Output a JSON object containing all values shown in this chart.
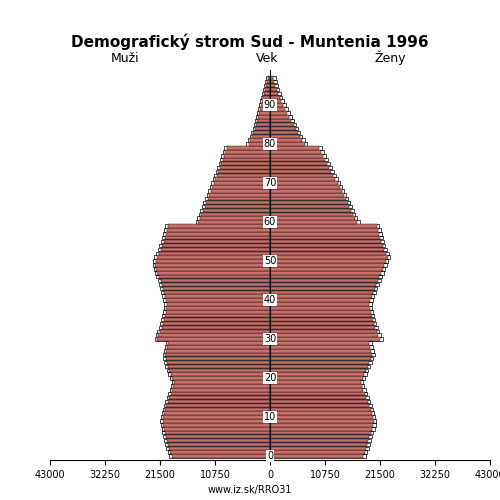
{
  "title": "Demografický strom Sud - Muntenia 1996",
  "label_males": "Muži",
  "label_females": "Ženy",
  "label_age": "Vek",
  "footer": "www.iz.sk/RRO31",
  "xlim": 43000,
  "bar_color": "#C8706A",
  "bar_edge_color": "#1a1a1a",
  "males": [
    19200,
    19500,
    19800,
    20000,
    20200,
    20400,
    20600,
    20700,
    20900,
    21000,
    20900,
    20700,
    20500,
    20300,
    20000,
    19700,
    19400,
    19100,
    18900,
    18700,
    19100,
    19400,
    19700,
    20000,
    20200,
    20400,
    20500,
    20300,
    20200,
    20000,
    22000,
    21800,
    21500,
    21200,
    21000,
    20800,
    20600,
    20400,
    20300,
    20200,
    20400,
    20600,
    20800,
    21000,
    21200,
    21400,
    21700,
    22000,
    22200,
    22400,
    22300,
    22100,
    21700,
    21400,
    21100,
    20800,
    20600,
    20400,
    20200,
    20000,
    14000,
    13700,
    13400,
    13100,
    12800,
    12500,
    12200,
    11900,
    11600,
    11300,
    11000,
    10700,
    10400,
    10100,
    9800,
    9500,
    9200,
    9000,
    8700,
    8400,
    4200,
    3900,
    3600,
    3300,
    3000,
    2800,
    2600,
    2400,
    2200,
    2000,
    1800,
    1600,
    1400,
    1200,
    1000,
    800,
    600,
    400
  ],
  "females": [
    18200,
    18500,
    18800,
    19000,
    19200,
    19400,
    19700,
    20000,
    20200,
    20300,
    20100,
    19900,
    19700,
    19400,
    19100,
    18800,
    18500,
    18200,
    17900,
    17700,
    18100,
    18400,
    18700,
    19100,
    19400,
    19700,
    20000,
    19800,
    19600,
    19400,
    21500,
    21200,
    20900,
    20600,
    20300,
    20100,
    19900,
    19700,
    19500,
    19400,
    19600,
    19900,
    20200,
    20500,
    20800,
    21100,
    21400,
    21700,
    22000,
    22300,
    22600,
    23000,
    22700,
    22300,
    22000,
    21700,
    21500,
    21300,
    21100,
    20900,
    17000,
    16600,
    16200,
    15900,
    15500,
    15200,
    14800,
    14400,
    14000,
    13600,
    13200,
    12800,
    12400,
    12000,
    11600,
    11200,
    10800,
    10400,
    10000,
    9600,
    6800,
    6300,
    5800,
    5400,
    5000,
    4600,
    4200,
    3800,
    3400,
    3000,
    2600,
    2200,
    1900,
    1600,
    1300,
    1000,
    800,
    600
  ],
  "males_ref": [
    19700,
    20000,
    20300,
    20500,
    20700,
    20900,
    21100,
    21200,
    21400,
    21500,
    21400,
    21200,
    21000,
    20800,
    20500,
    20200,
    19900,
    19600,
    19400,
    19200,
    19600,
    19900,
    20200,
    20500,
    20700,
    20900,
    21000,
    20800,
    20600,
    20400,
    22500,
    22300,
    22000,
    21700,
    21500,
    21300,
    21100,
    20900,
    20800,
    20700,
    20900,
    21100,
    21300,
    21500,
    21700,
    21900,
    22200,
    22500,
    22700,
    22900,
    22800,
    22600,
    22200,
    21900,
    21600,
    21300,
    21100,
    20900,
    20700,
    20500,
    14500,
    14200,
    13900,
    13600,
    13300,
    13000,
    12700,
    12400,
    12100,
    11800,
    11500,
    11200,
    10900,
    10600,
    10300,
    10000,
    9700,
    9500,
    9200,
    8900,
    4600,
    4300,
    4000,
    3700,
    3400,
    3200,
    3000,
    2800,
    2600,
    2400,
    2200,
    2000,
    1800,
    1600,
    1400,
    1200,
    1000,
    800
  ],
  "females_ref": [
    18700,
    19000,
    19300,
    19500,
    19700,
    19900,
    20200,
    20500,
    20700,
    20800,
    20600,
    20400,
    20200,
    19900,
    19600,
    19300,
    19000,
    18700,
    18400,
    18200,
    18600,
    18900,
    19200,
    19600,
    19900,
    20200,
    20500,
    20300,
    20100,
    19900,
    22000,
    21700,
    21400,
    21100,
    20800,
    20600,
    20400,
    20200,
    20000,
    19900,
    20100,
    20400,
    20700,
    21000,
    21300,
    21600,
    21900,
    22200,
    22500,
    22800,
    23100,
    23500,
    23200,
    22800,
    22500,
    22200,
    22000,
    21800,
    21600,
    21400,
    17500,
    17100,
    16700,
    16400,
    16000,
    15700,
    15300,
    14900,
    14500,
    14100,
    13700,
    13300,
    12900,
    12500,
    12100,
    11700,
    11300,
    10900,
    10500,
    10100,
    7300,
    6800,
    6300,
    5900,
    5500,
    5100,
    4700,
    4300,
    3900,
    3500,
    3100,
    2700,
    2400,
    2100,
    1800,
    1500,
    1300,
    1100
  ]
}
